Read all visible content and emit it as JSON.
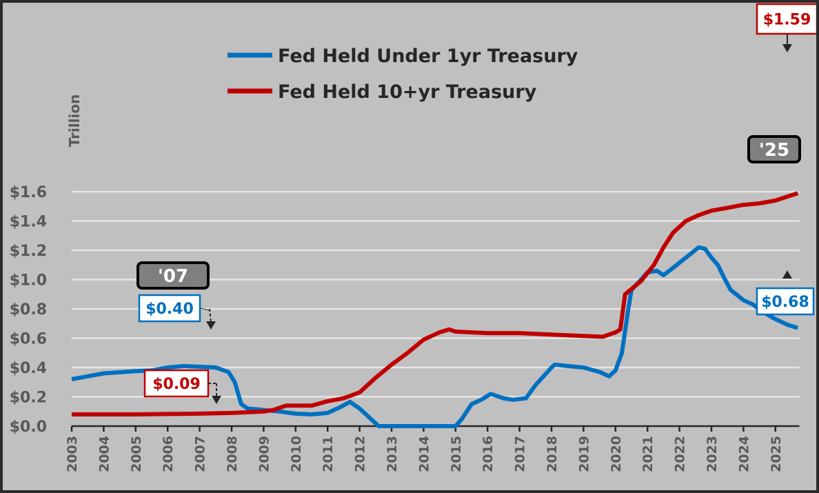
{
  "chart_data": {
    "type": "line",
    "title": "",
    "ylabel": "Trillion",
    "xlabel": "",
    "xlim": [
      2003,
      2025.75
    ],
    "ylim": [
      0,
      1.6
    ],
    "grid": true,
    "legend_placement": "top-center",
    "x_tick_labels": [
      "2003",
      "2004",
      "2005",
      "2006",
      "2007",
      "2008",
      "2009",
      "2010",
      "2011",
      "2012",
      "2013",
      "2014",
      "2015",
      "2016",
      "2017",
      "2018",
      "2019",
      "2020",
      "2021",
      "2022",
      "2023",
      "2024",
      "2025"
    ],
    "y_tick_labels": [
      "$0.0",
      "$0.2",
      "$0.4",
      "$0.6",
      "$0.8",
      "$1.0",
      "$1.2",
      "$1.4",
      "$1.6"
    ],
    "y_ticks": [
      0,
      0.2,
      0.4,
      0.6,
      0.8,
      1.0,
      1.2,
      1.4,
      1.6
    ],
    "series": [
      {
        "name": "Fed Held Under 1yr Treasury",
        "color": "#0070c0",
        "points": [
          [
            2003,
            0.32
          ],
          [
            2003.5,
            0.34
          ],
          [
            2004,
            0.36
          ],
          [
            2005,
            0.375
          ],
          [
            2005.5,
            0.38
          ],
          [
            2006,
            0.4
          ],
          [
            2006.5,
            0.41
          ],
          [
            2007,
            0.405
          ],
          [
            2007.5,
            0.4
          ],
          [
            2007.9,
            0.37
          ],
          [
            2008.1,
            0.3
          ],
          [
            2008.3,
            0.15
          ],
          [
            2008.5,
            0.12
          ],
          [
            2009,
            0.11
          ],
          [
            2009.5,
            0.1
          ],
          [
            2010,
            0.085
          ],
          [
            2010.5,
            0.08
          ],
          [
            2011,
            0.09
          ],
          [
            2011.4,
            0.13
          ],
          [
            2011.7,
            0.165
          ],
          [
            2012,
            0.12
          ],
          [
            2012.3,
            0.06
          ],
          [
            2012.6,
            0.0
          ],
          [
            2015,
            0.0
          ],
          [
            2015.2,
            0.05
          ],
          [
            2015.5,
            0.15
          ],
          [
            2015.8,
            0.18
          ],
          [
            2016.1,
            0.22
          ],
          [
            2016.5,
            0.19
          ],
          [
            2016.8,
            0.18
          ],
          [
            2017.2,
            0.19
          ],
          [
            2017.5,
            0.28
          ],
          [
            2018,
            0.4
          ],
          [
            2018.1,
            0.42
          ],
          [
            2018.5,
            0.41
          ],
          [
            2019,
            0.4
          ],
          [
            2019.5,
            0.37
          ],
          [
            2019.8,
            0.34
          ],
          [
            2020,
            0.38
          ],
          [
            2020.2,
            0.5
          ],
          [
            2020.4,
            0.8
          ],
          [
            2020.5,
            0.93
          ],
          [
            2020.8,
            1.0
          ],
          [
            2021,
            1.05
          ],
          [
            2021.3,
            1.06
          ],
          [
            2021.5,
            1.03
          ],
          [
            2021.8,
            1.08
          ],
          [
            2022.2,
            1.15
          ],
          [
            2022.6,
            1.22
          ],
          [
            2022.8,
            1.21
          ],
          [
            2023,
            1.15
          ],
          [
            2023.2,
            1.1
          ],
          [
            2023.4,
            1.01
          ],
          [
            2023.6,
            0.93
          ],
          [
            2024,
            0.86
          ],
          [
            2024.3,
            0.83
          ],
          [
            2024.6,
            0.78
          ],
          [
            2025,
            0.73
          ],
          [
            2025.4,
            0.69
          ],
          [
            2025.7,
            0.67
          ]
        ]
      },
      {
        "name": "Fed Held 10+yr Treasury",
        "color": "#c00000",
        "points": [
          [
            2003,
            0.08
          ],
          [
            2005,
            0.08
          ],
          [
            2007,
            0.085
          ],
          [
            2008,
            0.09
          ],
          [
            2009,
            0.1
          ],
          [
            2009.3,
            0.11
          ],
          [
            2009.7,
            0.14
          ],
          [
            2010.5,
            0.14
          ],
          [
            2011,
            0.17
          ],
          [
            2011.5,
            0.19
          ],
          [
            2012,
            0.23
          ],
          [
            2012.5,
            0.33
          ],
          [
            2013,
            0.42
          ],
          [
            2013.5,
            0.5
          ],
          [
            2014,
            0.59
          ],
          [
            2014.5,
            0.64
          ],
          [
            2014.8,
            0.66
          ],
          [
            2015,
            0.645
          ],
          [
            2016,
            0.635
          ],
          [
            2017,
            0.635
          ],
          [
            2018,
            0.625
          ],
          [
            2019,
            0.615
          ],
          [
            2019.6,
            0.61
          ],
          [
            2020,
            0.64
          ],
          [
            2020.15,
            0.66
          ],
          [
            2020.3,
            0.9
          ],
          [
            2020.8,
            0.99
          ],
          [
            2021.2,
            1.1
          ],
          [
            2021.5,
            1.22
          ],
          [
            2021.8,
            1.32
          ],
          [
            2022.2,
            1.4
          ],
          [
            2022.6,
            1.44
          ],
          [
            2023,
            1.47
          ],
          [
            2023.5,
            1.49
          ],
          [
            2024,
            1.51
          ],
          [
            2024.5,
            1.52
          ],
          [
            2025,
            1.54
          ],
          [
            2025.7,
            1.59
          ]
        ]
      }
    ],
    "annotations": {
      "year_2007": "'07",
      "year_2025": "'25",
      "blue_2007": "$0.40",
      "red_2007": "$0.09",
      "blue_2025": "$0.68",
      "red_2025": "$1.59"
    }
  }
}
